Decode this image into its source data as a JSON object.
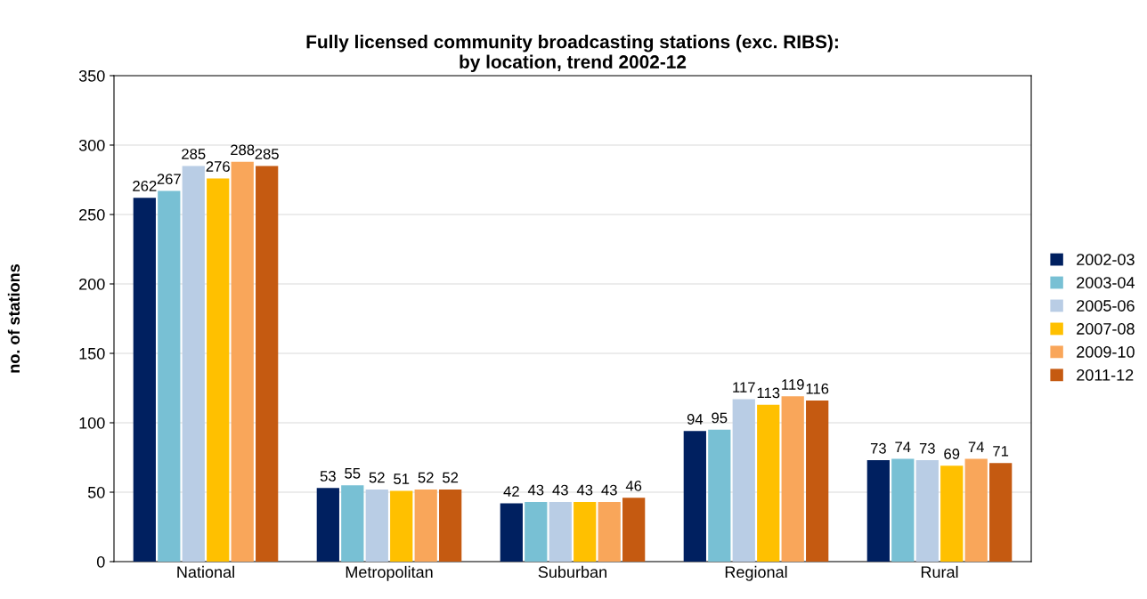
{
  "chart_data": {
    "type": "bar",
    "title": "Fully licensed community broadcasting stations (exc. RIBS):\nby location, trend 2002-12",
    "ylabel": "no. of stations",
    "categories": [
      "National",
      "Metropolitan",
      "Suburban",
      "Regional",
      "Rural"
    ],
    "series": [
      {
        "name": "2002-03",
        "color": "#002060",
        "values": [
          262,
          53,
          42,
          94,
          73
        ]
      },
      {
        "name": "2003-04",
        "color": "#78c0d4",
        "values": [
          267,
          55,
          43,
          95,
          74
        ]
      },
      {
        "name": "2005-06",
        "color": "#b9cde5",
        "values": [
          285,
          52,
          43,
          117,
          73
        ]
      },
      {
        "name": "2007-08",
        "color": "#ffc000",
        "values": [
          276,
          51,
          43,
          113,
          69
        ]
      },
      {
        "name": "2009-10",
        "color": "#f9a65a",
        "values": [
          288,
          52,
          43,
          119,
          74
        ]
      },
      {
        "name": "2011-12",
        "color": "#c55a11",
        "values": [
          285,
          52,
          46,
          116,
          71
        ]
      }
    ],
    "ylim": [
      0,
      350
    ],
    "yticks": [
      0,
      50,
      100,
      150,
      200,
      250,
      300,
      350
    ],
    "grid": "y",
    "legend": "right",
    "data_labels": true
  }
}
